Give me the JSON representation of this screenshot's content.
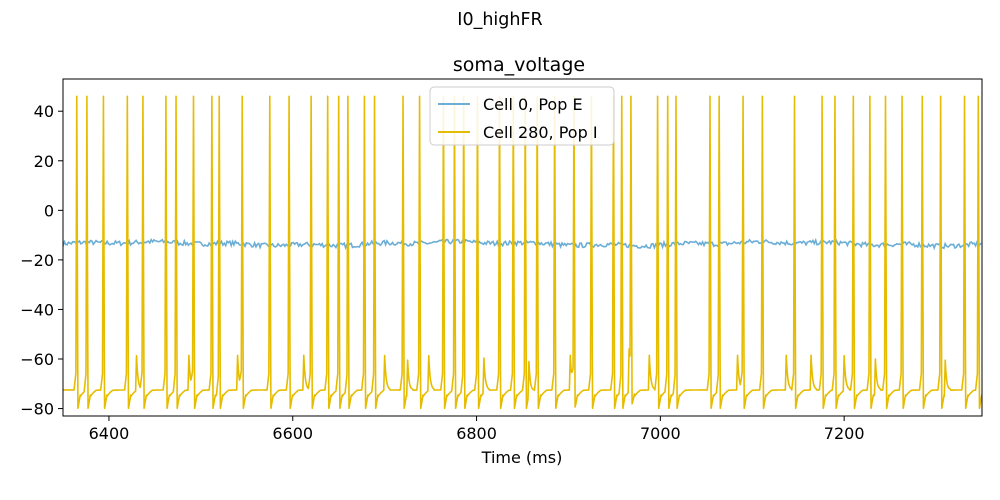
{
  "figure": {
    "suptitle": "I0_highFR"
  },
  "chart_data": {
    "type": "line",
    "title": "soma_voltage",
    "xlabel": "Time (ms)",
    "ylabel": "",
    "xlim": [
      6350,
      7350
    ],
    "ylim": [
      -83,
      53
    ],
    "xticks": [
      6400,
      6600,
      6800,
      7000,
      7200
    ],
    "xtick_labels": [
      "6400",
      "6600",
      "6800",
      "7000",
      "7200"
    ],
    "yticks": [
      40,
      20,
      0,
      -20,
      -40,
      -60,
      -80
    ],
    "ytick_labels": [
      "40",
      "20",
      "0",
      "−20",
      "−40",
      "−60",
      "−80"
    ],
    "grid": false,
    "legend_position": "upper-center",
    "series": [
      {
        "name": "Cell 0, Pop E",
        "color": "#6baed6",
        "kind": "noisy_baseline",
        "baseline_mV": -13.5,
        "amplitude_mV": 1.2
      },
      {
        "name": "Cell 280, Pop I",
        "color": "#e6bc00",
        "kind": "spike_train",
        "rest_mV": -76,
        "peak_mV": 46,
        "spike_times_ms": [
          6365,
          6376,
          6394,
          6420,
          6437,
          6462,
          6473,
          6492,
          6512,
          6520,
          6545,
          6575,
          6596,
          6620,
          6638,
          6650,
          6660,
          6678,
          6689,
          6720,
          6738,
          6764,
          6776,
          6786,
          6801,
          6825,
          6840,
          6853,
          6866,
          6885,
          6906,
          6925,
          6949,
          6958,
          6968,
          6997,
          7008,
          7017,
          7054,
          7064,
          7090,
          7111,
          7146,
          7176,
          7190,
          7210,
          7228,
          7245,
          7263,
          7285,
          7305,
          7331,
          7346
        ],
        "subthreshold_bumps_ms": [
          6430,
          6487,
          6540,
          6612,
          6700,
          6725,
          6748,
          6808,
          6857,
          6902,
          6966,
          6988,
          7084,
          7137,
          7164,
          7200,
          7234,
          7310
        ]
      }
    ]
  }
}
